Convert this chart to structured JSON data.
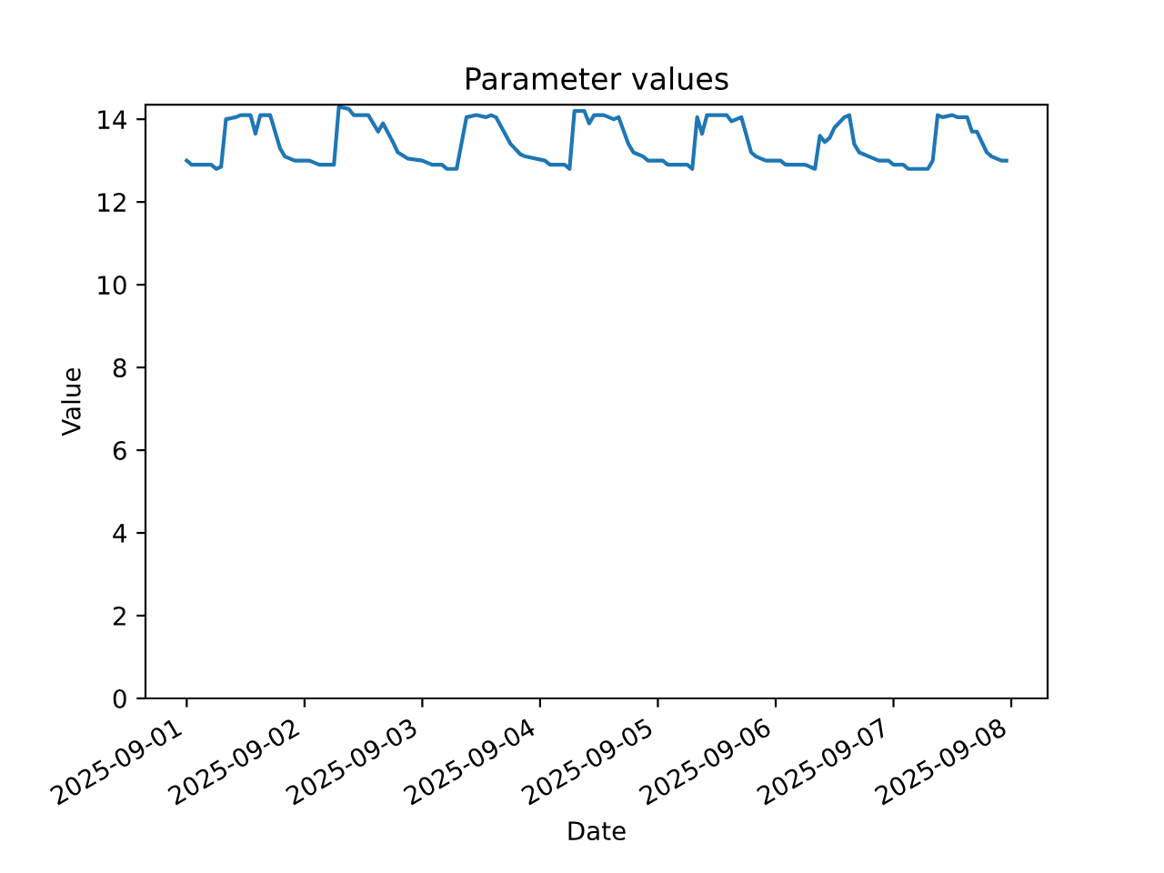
{
  "chart_data": {
    "type": "line",
    "title": "Parameter values",
    "xlabel": "Date",
    "ylabel": "Value",
    "x": [
      "2025-09-01T00:00",
      "2025-09-01T01:00",
      "2025-09-01T05:00",
      "2025-09-01T06:00",
      "2025-09-01T07:00",
      "2025-09-01T08:00",
      "2025-09-01T10:00",
      "2025-09-01T11:00",
      "2025-09-01T13:00",
      "2025-09-01T14:00",
      "2025-09-01T15:00",
      "2025-09-01T17:00",
      "2025-09-01T19:00",
      "2025-09-01T20:00",
      "2025-09-01T22:00",
      "2025-09-02T01:00",
      "2025-09-02T03:00",
      "2025-09-02T06:00",
      "2025-09-02T07:00",
      "2025-09-02T09:00",
      "2025-09-02T10:00",
      "2025-09-02T13:00",
      "2025-09-02T15:00",
      "2025-09-02T16:00",
      "2025-09-02T18:00",
      "2025-09-02T19:00",
      "2025-09-02T21:00",
      "2025-09-03T00:00",
      "2025-09-03T02:00",
      "2025-09-03T04:00",
      "2025-09-03T05:00",
      "2025-09-03T07:00",
      "2025-09-03T09:00",
      "2025-09-03T11:00",
      "2025-09-03T13:00",
      "2025-09-03T14:00",
      "2025-09-03T15:00",
      "2025-09-03T18:00",
      "2025-09-03T20:00",
      "2025-09-03T21:00",
      "2025-09-04T01:00",
      "2025-09-04T02:00",
      "2025-09-04T05:00",
      "2025-09-04T06:00",
      "2025-09-04T07:00",
      "2025-09-04T09:00",
      "2025-09-04T10:00",
      "2025-09-04T11:00",
      "2025-09-04T13:00",
      "2025-09-04T15:00",
      "2025-09-04T16:00",
      "2025-09-04T18:00",
      "2025-09-04T19:00",
      "2025-09-04T21:00",
      "2025-09-04T22:00",
      "2025-09-05T01:00",
      "2025-09-05T02:00",
      "2025-09-05T06:00",
      "2025-09-05T07:00",
      "2025-09-05T08:00",
      "2025-09-05T09:00",
      "2025-09-05T10:00",
      "2025-09-05T14:00",
      "2025-09-05T15:00",
      "2025-09-05T17:00",
      "2025-09-05T19:00",
      "2025-09-05T20:00",
      "2025-09-05T22:00",
      "2025-09-06T01:00",
      "2025-09-06T02:00",
      "2025-09-06T06:00",
      "2025-09-06T08:00",
      "2025-09-06T09:00",
      "2025-09-06T10:00",
      "2025-09-06T11:00",
      "2025-09-06T12:00",
      "2025-09-06T14:00",
      "2025-09-06T15:00",
      "2025-09-06T16:00",
      "2025-09-06T17:00",
      "2025-09-06T19:00",
      "2025-09-06T21:00",
      "2025-09-06T23:00",
      "2025-09-07T00:00",
      "2025-09-07T02:00",
      "2025-09-07T03:00",
      "2025-09-07T07:00",
      "2025-09-07T08:00",
      "2025-09-07T09:00",
      "2025-09-07T10:00",
      "2025-09-07T12:00",
      "2025-09-07T13:00",
      "2025-09-07T15:00",
      "2025-09-07T16:00",
      "2025-09-07T17:00",
      "2025-09-07T19:00",
      "2025-09-07T20:00",
      "2025-09-07T22:00",
      "2025-09-07T23:00"
    ],
    "values": [
      13.0,
      12.9,
      12.9,
      12.8,
      12.85,
      14.0,
      14.05,
      14.1,
      14.1,
      13.65,
      14.1,
      14.1,
      13.3,
      13.1,
      13.0,
      13.0,
      12.9,
      12.9,
      14.3,
      14.25,
      14.1,
      14.1,
      13.7,
      13.9,
      13.45,
      13.2,
      13.05,
      13.0,
      12.9,
      12.9,
      12.8,
      12.8,
      14.05,
      14.1,
      14.05,
      14.1,
      14.05,
      13.4,
      13.15,
      13.1,
      13.0,
      12.9,
      12.9,
      12.8,
      14.2,
      14.2,
      13.9,
      14.1,
      14.1,
      14.0,
      14.05,
      13.4,
      13.2,
      13.1,
      13.0,
      13.0,
      12.9,
      12.9,
      12.8,
      14.05,
      13.65,
      14.1,
      14.1,
      13.95,
      14.05,
      13.2,
      13.1,
      13.0,
      13.0,
      12.9,
      12.9,
      12.8,
      13.6,
      13.45,
      13.55,
      13.8,
      14.05,
      14.1,
      13.4,
      13.2,
      13.1,
      13.0,
      13.0,
      12.9,
      12.9,
      12.8,
      12.8,
      13.0,
      14.1,
      14.05,
      14.1,
      14.05,
      14.05,
      13.7,
      13.7,
      13.2,
      13.1,
      13.0,
      13.0
    ],
    "color": "#1f77b4",
    "xlim": [
      "2025-08-31T15:36",
      "2025-09-08T07:24"
    ],
    "xticks": [
      {
        "value": "2025-09-01",
        "label": "2025-09-01"
      },
      {
        "value": "2025-09-02",
        "label": "2025-09-02"
      },
      {
        "value": "2025-09-03",
        "label": "2025-09-03"
      },
      {
        "value": "2025-09-04",
        "label": "2025-09-04"
      },
      {
        "value": "2025-09-05",
        "label": "2025-09-05"
      },
      {
        "value": "2025-09-06",
        "label": "2025-09-06"
      },
      {
        "value": "2025-09-07",
        "label": "2025-09-07"
      },
      {
        "value": "2025-09-08",
        "label": "2025-09-08"
      }
    ],
    "ylim": [
      0,
      14.35
    ],
    "yticks": [
      0,
      2,
      4,
      6,
      8,
      10,
      12,
      14
    ],
    "grid": false,
    "legend": false,
    "marker": "none",
    "line_style": "solid"
  }
}
